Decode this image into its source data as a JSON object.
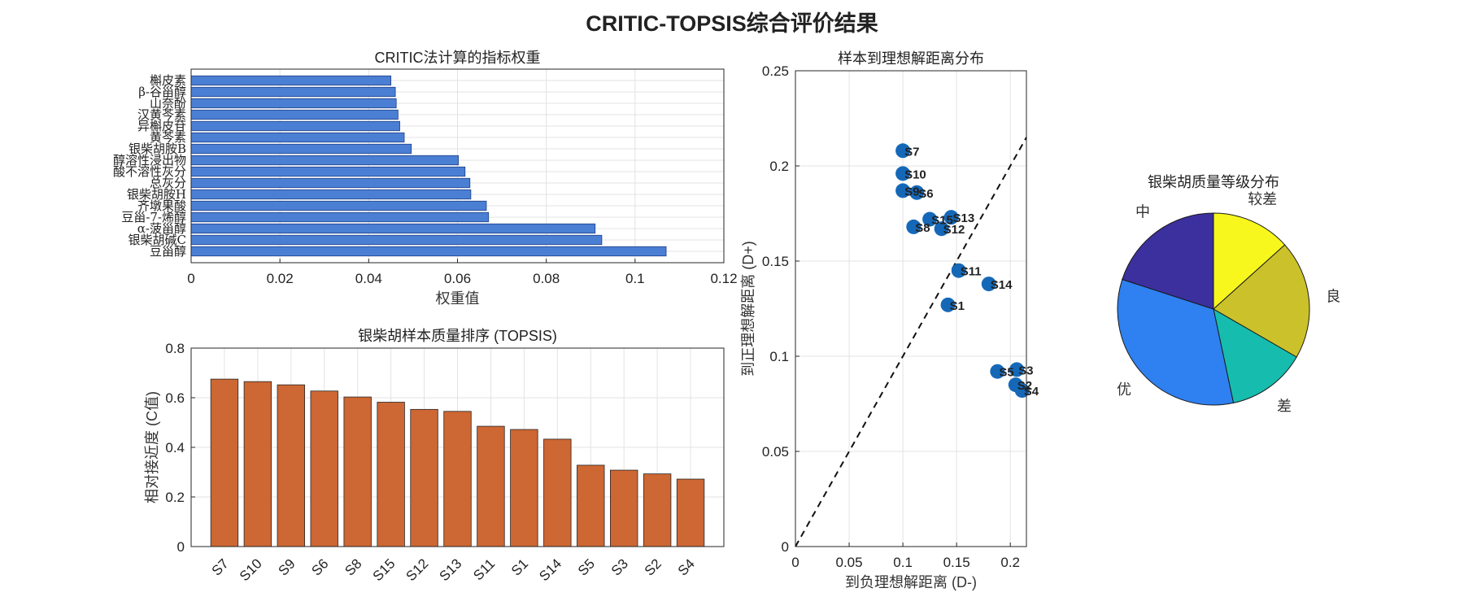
{
  "figure_title": "CRITIC-TOPSIS综合评价结果",
  "chart_data": [
    {
      "type": "bar",
      "orientation": "horizontal",
      "title": "CRITIC法计算的指标权重",
      "xlabel": "权重值",
      "ylabel": "",
      "xlim": [
        0,
        0.12
      ],
      "xticks": [
        "0",
        "0.02",
        "0.04",
        "0.06",
        "0.08",
        "0.1",
        "0.12"
      ],
      "categories": [
        "豆甾醇",
        "银柴胡碱C",
        "α-菠甾醇",
        "豆甾-7-烯醇",
        "齐墩果酸",
        "银柴胡胺H",
        "总灰分",
        "酸不溶性灰分",
        "醇溶性浸出物",
        "银柴胡胺B",
        "黄芩素",
        "异槲皮苷",
        "汉黄芩素",
        "山奈酚",
        "β-谷甾醇",
        "槲皮素"
      ],
      "values": [
        0.107,
        0.0925,
        0.091,
        0.067,
        0.0665,
        0.063,
        0.0628,
        0.0617,
        0.0602,
        0.0496,
        0.048,
        0.047,
        0.0466,
        0.0462,
        0.046,
        0.045
      ],
      "color": "#4a7fd4"
    },
    {
      "type": "bar",
      "title": "银柴胡样本质量排序 (TOPSIS)",
      "xlabel": "",
      "ylabel": "相对接近度 (C值)",
      "ylim": [
        0,
        0.8
      ],
      "yticks": [
        "0",
        "0.2",
        "0.4",
        "0.6",
        "0.8"
      ],
      "categories": [
        "S7",
        "S10",
        "S9",
        "S6",
        "S8",
        "S15",
        "S12",
        "S13",
        "S11",
        "S1",
        "S14",
        "S5",
        "S3",
        "S2",
        "S4"
      ],
      "values": [
        0.675,
        0.665,
        0.652,
        0.627,
        0.603,
        0.582,
        0.553,
        0.545,
        0.485,
        0.472,
        0.433,
        0.328,
        0.308,
        0.293,
        0.272
      ],
      "color": "#cd6733"
    },
    {
      "type": "scatter",
      "title": "样本到理想解距离分布",
      "xlabel": "到负理想解距离 (D-)",
      "ylabel": "到正理想解距离 (D+)",
      "xlim": [
        0,
        0.215
      ],
      "ylim": [
        0,
        0.25
      ],
      "xticks": [
        "0",
        "0.05",
        "0.1",
        "0.15",
        "0.2"
      ],
      "yticks": [
        "0",
        "0.05",
        "0.1",
        "0.15",
        "0.2",
        "0.25"
      ],
      "reference_line": "y = x",
      "color": "#1568b8",
      "points": [
        {
          "label": "S7",
          "x": 0.1,
          "y": 0.208
        },
        {
          "label": "S10",
          "x": 0.1,
          "y": 0.196
        },
        {
          "label": "S9",
          "x": 0.1,
          "y": 0.187
        },
        {
          "label": "S6",
          "x": 0.113,
          "y": 0.186
        },
        {
          "label": "S15",
          "x": 0.125,
          "y": 0.172
        },
        {
          "label": "S13",
          "x": 0.145,
          "y": 0.173
        },
        {
          "label": "S8",
          "x": 0.11,
          "y": 0.168
        },
        {
          "label": "S12",
          "x": 0.136,
          "y": 0.167
        },
        {
          "label": "S11",
          "x": 0.152,
          "y": 0.145
        },
        {
          "label": "S14",
          "x": 0.18,
          "y": 0.138
        },
        {
          "label": "S1",
          "x": 0.142,
          "y": 0.127
        },
        {
          "label": "S5",
          "x": 0.188,
          "y": 0.092
        },
        {
          "label": "S3",
          "x": 0.206,
          "y": 0.093
        },
        {
          "label": "S2",
          "x": 0.205,
          "y": 0.085
        },
        {
          "label": "S4",
          "x": 0.211,
          "y": 0.082
        }
      ]
    },
    {
      "type": "pie",
      "title": "银柴胡质量等级分布",
      "slices": [
        {
          "label": "较差",
          "value": 2,
          "color": "#f7f71e"
        },
        {
          "label": "良",
          "value": 3,
          "color": "#cbc22b"
        },
        {
          "label": "差",
          "value": 2,
          "color": "#16bdae"
        },
        {
          "label": "优",
          "value": 5,
          "color": "#2f80f0"
        },
        {
          "label": "中",
          "value": 3,
          "color": "#3c2f9e"
        }
      ]
    }
  ]
}
